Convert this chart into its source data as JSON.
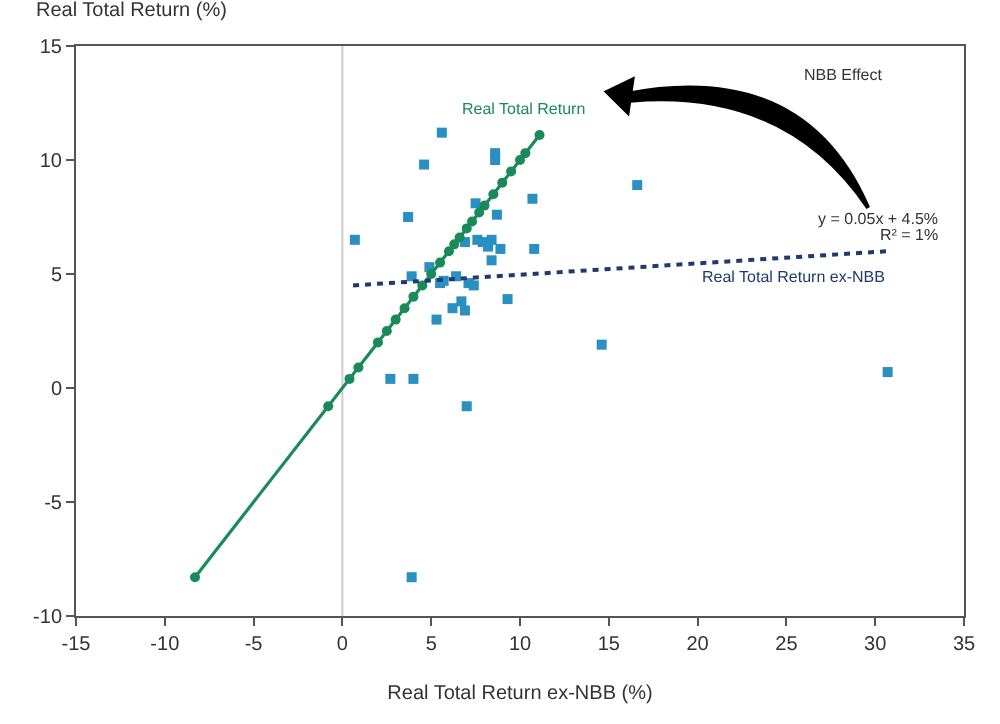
{
  "chart_data": {
    "type": "scatter",
    "xlabel": "Real Total Return ex-NBB (%)",
    "ylabel": "Real Total Return (%)",
    "xlim": [
      -15,
      35
    ],
    "xticks": [
      -15,
      -10,
      -5,
      0,
      5,
      10,
      15,
      20,
      25,
      30,
      35
    ],
    "ylim": [
      -10,
      15
    ],
    "yticks": [
      -10,
      -5,
      0,
      5,
      10,
      15
    ],
    "grid": false,
    "ref_lines": [
      {
        "axis": "x",
        "value": 0,
        "color": "#cccccc"
      }
    ],
    "series": [
      {
        "marker": "square",
        "color": "#2a8fc1",
        "x": [
          0.7,
          5.6,
          4.6,
          3.7,
          8.6,
          8.6,
          7.5,
          8.7,
          10.7,
          16.6,
          10.8,
          8.9,
          8.4,
          7.6,
          7.9,
          8.2,
          8.4,
          6.9,
          4.9,
          3.9,
          6.4,
          5.7,
          7.1,
          7.4,
          5.5,
          9.3,
          6.7,
          6.2,
          6.9,
          5.3,
          2.7,
          4.0,
          7.0,
          3.9,
          30.7,
          14.6
        ],
        "values": [
          6.5,
          11.2,
          9.8,
          7.5,
          10.3,
          10.0,
          8.1,
          7.6,
          8.3,
          8.9,
          6.1,
          6.1,
          6.5,
          6.5,
          6.4,
          6.2,
          5.6,
          6.4,
          5.3,
          4.9,
          4.9,
          4.7,
          4.6,
          4.5,
          4.6,
          3.9,
          3.8,
          3.5,
          3.4,
          3.0,
          0.4,
          0.4,
          -0.8,
          -8.3,
          0.7,
          1.9
        ]
      },
      {
        "type": "line",
        "name": "Real Total Return",
        "marker": "circle",
        "line_style": "solid",
        "color": "#1a8a5a",
        "x": [
          -8.3,
          -0.8,
          0.4,
          0.9,
          2.0,
          2.5,
          3.0,
          3.5,
          4.0,
          4.5,
          5.0,
          5.5,
          6.0,
          6.3,
          6.6,
          7.0,
          7.3,
          7.7,
          8.0,
          8.5,
          9.0,
          9.5,
          10.0,
          10.3,
          11.1
        ],
        "values": [
          -8.3,
          -0.8,
          0.4,
          0.9,
          2.0,
          2.5,
          3.0,
          3.5,
          4.0,
          4.5,
          5.0,
          5.5,
          6.0,
          6.3,
          6.6,
          7.0,
          7.3,
          7.7,
          8.0,
          8.5,
          9.0,
          9.5,
          10.0,
          10.3,
          11.1
        ]
      },
      {
        "type": "line",
        "name": "Real Total Return ex-NBB",
        "marker": "none",
        "line_style": "dotted",
        "color": "#1f3a6b",
        "x": [
          0.6,
          30.7
        ],
        "values": [
          4.5,
          6.0
        ]
      }
    ],
    "annotations": [
      "NBB Effect",
      "y = 0.05x + 4.5%",
      "R² = 1%"
    ]
  }
}
